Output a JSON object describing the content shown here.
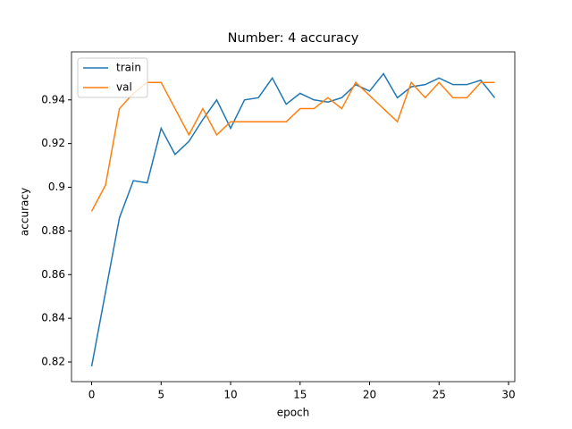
{
  "chart_data": {
    "type": "line",
    "title": "Number: 4 accuracy",
    "x_label": "epoch",
    "y_label": "accuracy",
    "x": [
      0,
      1,
      2,
      3,
      4,
      5,
      6,
      7,
      8,
      9,
      10,
      11,
      12,
      13,
      14,
      15,
      16,
      17,
      18,
      19,
      20,
      21,
      22,
      23,
      24,
      25,
      26,
      27,
      28,
      29
    ],
    "series": [
      {
        "name": "train",
        "color": "#1f77b4",
        "values": [
          0.818,
          0.852,
          0.886,
          0.903,
          0.902,
          0.927,
          0.915,
          0.921,
          0.931,
          0.94,
          0.927,
          0.94,
          0.941,
          0.95,
          0.938,
          0.943,
          0.94,
          0.939,
          0.941,
          0.947,
          0.944,
          0.952,
          0.941,
          0.946,
          0.947,
          0.95,
          0.947,
          0.947,
          0.949,
          0.941
        ]
      },
      {
        "name": "val",
        "color": "#ff7f0e",
        "values": [
          0.889,
          0.901,
          0.936,
          0.943,
          0.948,
          0.948,
          0.936,
          0.924,
          0.936,
          0.924,
          0.93,
          0.93,
          0.93,
          0.93,
          0.93,
          0.936,
          0.936,
          0.941,
          0.936,
          0.948,
          0.942,
          0.936,
          0.93,
          0.948,
          0.941,
          0.948,
          0.941,
          0.941,
          0.948,
          0.948
        ]
      }
    ],
    "xlim": [
      -1.45,
      30.45
    ],
    "ylim": [
      0.811,
      0.962
    ],
    "xticks": [
      0,
      5,
      10,
      15,
      20,
      25,
      30
    ],
    "yticks": [
      0.82,
      0.84,
      0.86,
      0.88,
      0.9,
      0.92,
      0.94
    ],
    "legend": "upper left"
  }
}
